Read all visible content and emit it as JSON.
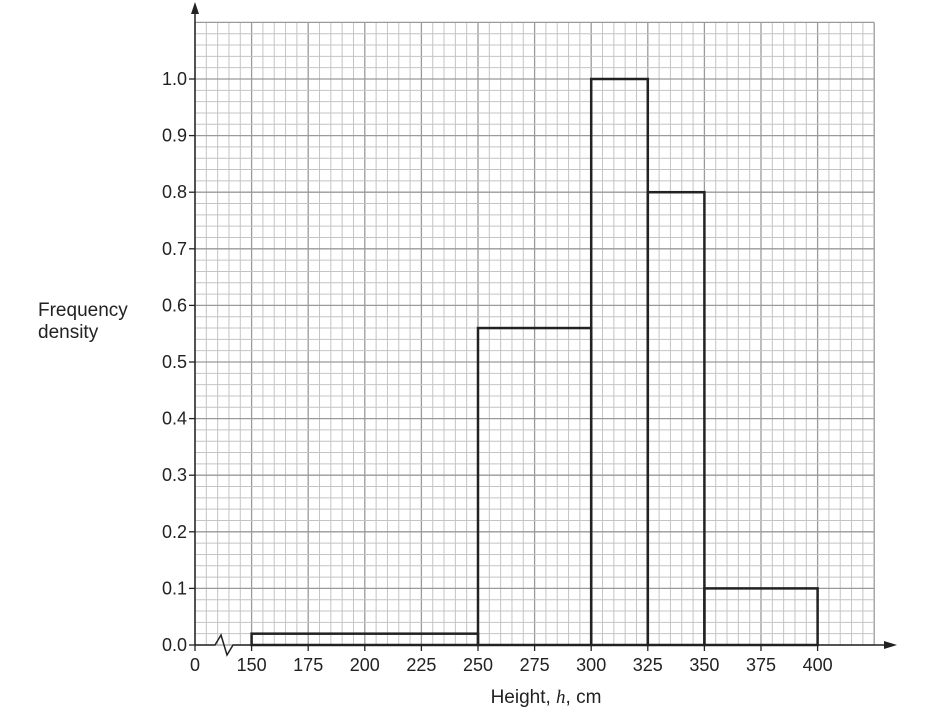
{
  "chart_data": {
    "type": "histogram",
    "title": "",
    "xlabel": {
      "prefix": "Height, ",
      "variable": "h",
      "suffix": ", cm"
    },
    "ylabel": [
      "Frequency",
      "density"
    ],
    "x_ticks": [
      0,
      150,
      175,
      200,
      225,
      250,
      275,
      300,
      325,
      350,
      375,
      400
    ],
    "x_tick_labels": [
      "0",
      "150",
      "175",
      "200",
      "225",
      "250",
      "275",
      "300",
      "325",
      "350",
      "375",
      "400"
    ],
    "x_axis_break": "between 0 and 150",
    "y_ticks": [
      0.0,
      0.1,
      0.2,
      0.3,
      0.4,
      0.5,
      0.6,
      0.7,
      0.8,
      0.9,
      1.0
    ],
    "y_tick_labels": [
      "0.0",
      "0.1",
      "0.2",
      "0.3",
      "0.4",
      "0.5",
      "0.6",
      "0.7",
      "0.8",
      "0.9",
      "1.0"
    ],
    "ylim": [
      0,
      1.1
    ],
    "grid": true,
    "bars": [
      {
        "from": 150,
        "to": 250,
        "density": 0.02
      },
      {
        "from": 250,
        "to": 300,
        "density": 0.56
      },
      {
        "from": 300,
        "to": 325,
        "density": 1.0
      },
      {
        "from": 325,
        "to": 350,
        "density": 0.8
      },
      {
        "from": 350,
        "to": 400,
        "density": 0.1
      }
    ],
    "colors": {
      "bar_outline": "#222222",
      "grid": "#b0b0b0"
    }
  }
}
